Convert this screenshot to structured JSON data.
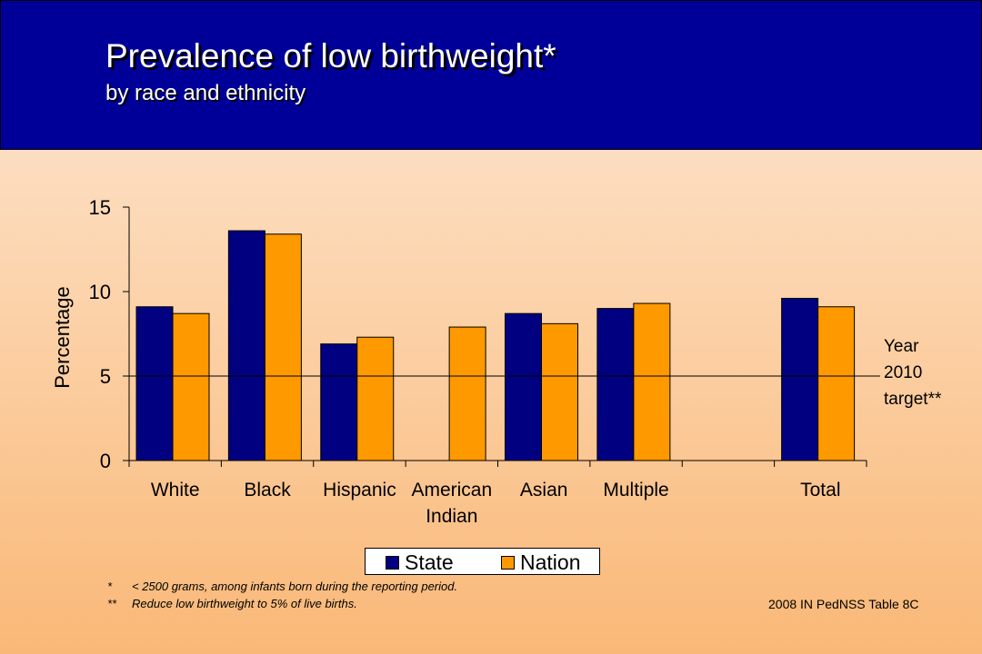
{
  "header": {
    "title": "Prevalence of low birthweight*",
    "subtitle": "by race and ethnicity"
  },
  "chart_data": {
    "type": "bar",
    "ylabel": "Percentage",
    "xlabel": "",
    "ylim": [
      0,
      15
    ],
    "yticks": [
      0,
      5,
      10,
      15
    ],
    "categories": [
      "White",
      "Black",
      "Hispanic",
      "American Indian",
      "Asian",
      "Multiple",
      "",
      "Total"
    ],
    "category_lines": [
      [
        "White"
      ],
      [
        "Black"
      ],
      [
        "Hispanic"
      ],
      [
        "American",
        "Indian"
      ],
      [
        "Asian"
      ],
      [
        "Multiple"
      ],
      [],
      [
        "Total"
      ]
    ],
    "series": [
      {
        "name": "State",
        "color": "#000080",
        "values": [
          9.1,
          13.6,
          6.9,
          null,
          8.7,
          9.0,
          null,
          9.6
        ]
      },
      {
        "name": "Nation",
        "color": "#ff9900",
        "values": [
          8.7,
          13.4,
          7.3,
          7.9,
          8.1,
          9.3,
          null,
          9.1
        ]
      }
    ],
    "reference_line": {
      "value": 5,
      "label": [
        "Year",
        "2010",
        "target**"
      ]
    },
    "legend": {
      "position": "bottom-center"
    }
  },
  "footnotes": [
    {
      "mark": "*",
      "text": "< 2500 grams, among infants born during the reporting period."
    },
    {
      "mark": "**",
      "text": "Reduce low birthweight to 5% of live births."
    }
  ],
  "source": "2008 IN PedNSS Table 8C"
}
